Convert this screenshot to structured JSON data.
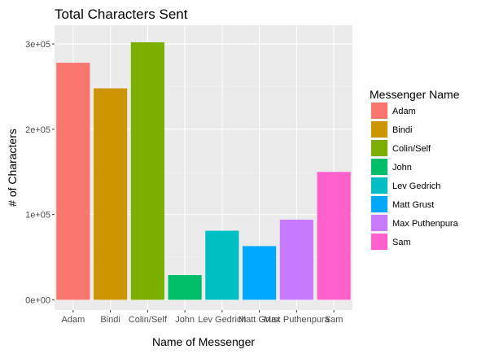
{
  "chart_data": {
    "type": "bar",
    "title": "Total Characters Sent",
    "xlabel": "Name of Messenger",
    "ylabel": "# of Characters",
    "categories": [
      "Adam",
      "Bindi",
      "Colin/Self",
      "John",
      "Lev Gedrich",
      "Matt Grust",
      "Max Puthenpura",
      "Sam"
    ],
    "values": [
      278000,
      248000,
      302000,
      29000,
      81000,
      63000,
      94000,
      150000
    ],
    "colors": [
      "#F8766D",
      "#CD9600",
      "#7CAE00",
      "#00BE67",
      "#00BFC4",
      "#00A9FF",
      "#C77CFF",
      "#FF61CC"
    ],
    "yticks": [
      0,
      100000,
      200000,
      300000
    ],
    "ytick_labels": [
      "0e+00",
      "1e+05",
      "2e+05",
      "3e+05"
    ],
    "ylim": [
      -12000,
      322000
    ],
    "grid": true,
    "legend": {
      "title": "Messenger Name",
      "placement": "right"
    }
  }
}
